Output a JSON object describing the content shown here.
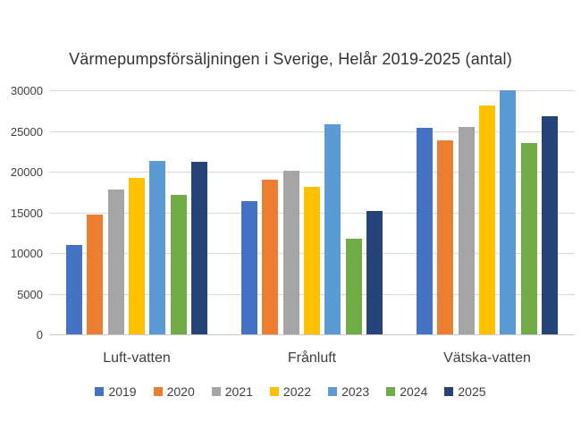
{
  "chart_data": {
    "type": "bar",
    "title": "Värmepumpsförsäljningen i Sverige, Helår 2019-2025 (antal)",
    "categories": [
      "Luft-vatten",
      "Frånluft",
      "Vätska-vatten"
    ],
    "series": [
      {
        "name": "2019",
        "color": "#4472C4",
        "values": [
          11000,
          16400,
          25400
        ]
      },
      {
        "name": "2020",
        "color": "#ED7D31",
        "values": [
          14700,
          19000,
          23800
        ]
      },
      {
        "name": "2021",
        "color": "#A5A5A5",
        "values": [
          17800,
          20100,
          25500
        ]
      },
      {
        "name": "2022",
        "color": "#FFC000",
        "values": [
          19200,
          18100,
          28100
        ]
      },
      {
        "name": "2023",
        "color": "#5B9BD5",
        "values": [
          21300,
          25800,
          30000
        ]
      },
      {
        "name": "2024",
        "color": "#70AD47",
        "values": [
          17100,
          11800,
          23500
        ]
      },
      {
        "name": "2025",
        "color": "#264478",
        "values": [
          21200,
          15200,
          26800
        ]
      }
    ],
    "ylabel": "",
    "xlabel": "",
    "ylim": [
      0,
      30000
    ],
    "yticks": [
      0,
      5000,
      10000,
      15000,
      20000,
      25000,
      30000
    ],
    "grid": true,
    "legend_position": "bottom"
  },
  "colors": {
    "background": "#FFFFFF",
    "gridline": "#D9D9D9",
    "axis_text": "#404040",
    "title_text": "#333333"
  }
}
